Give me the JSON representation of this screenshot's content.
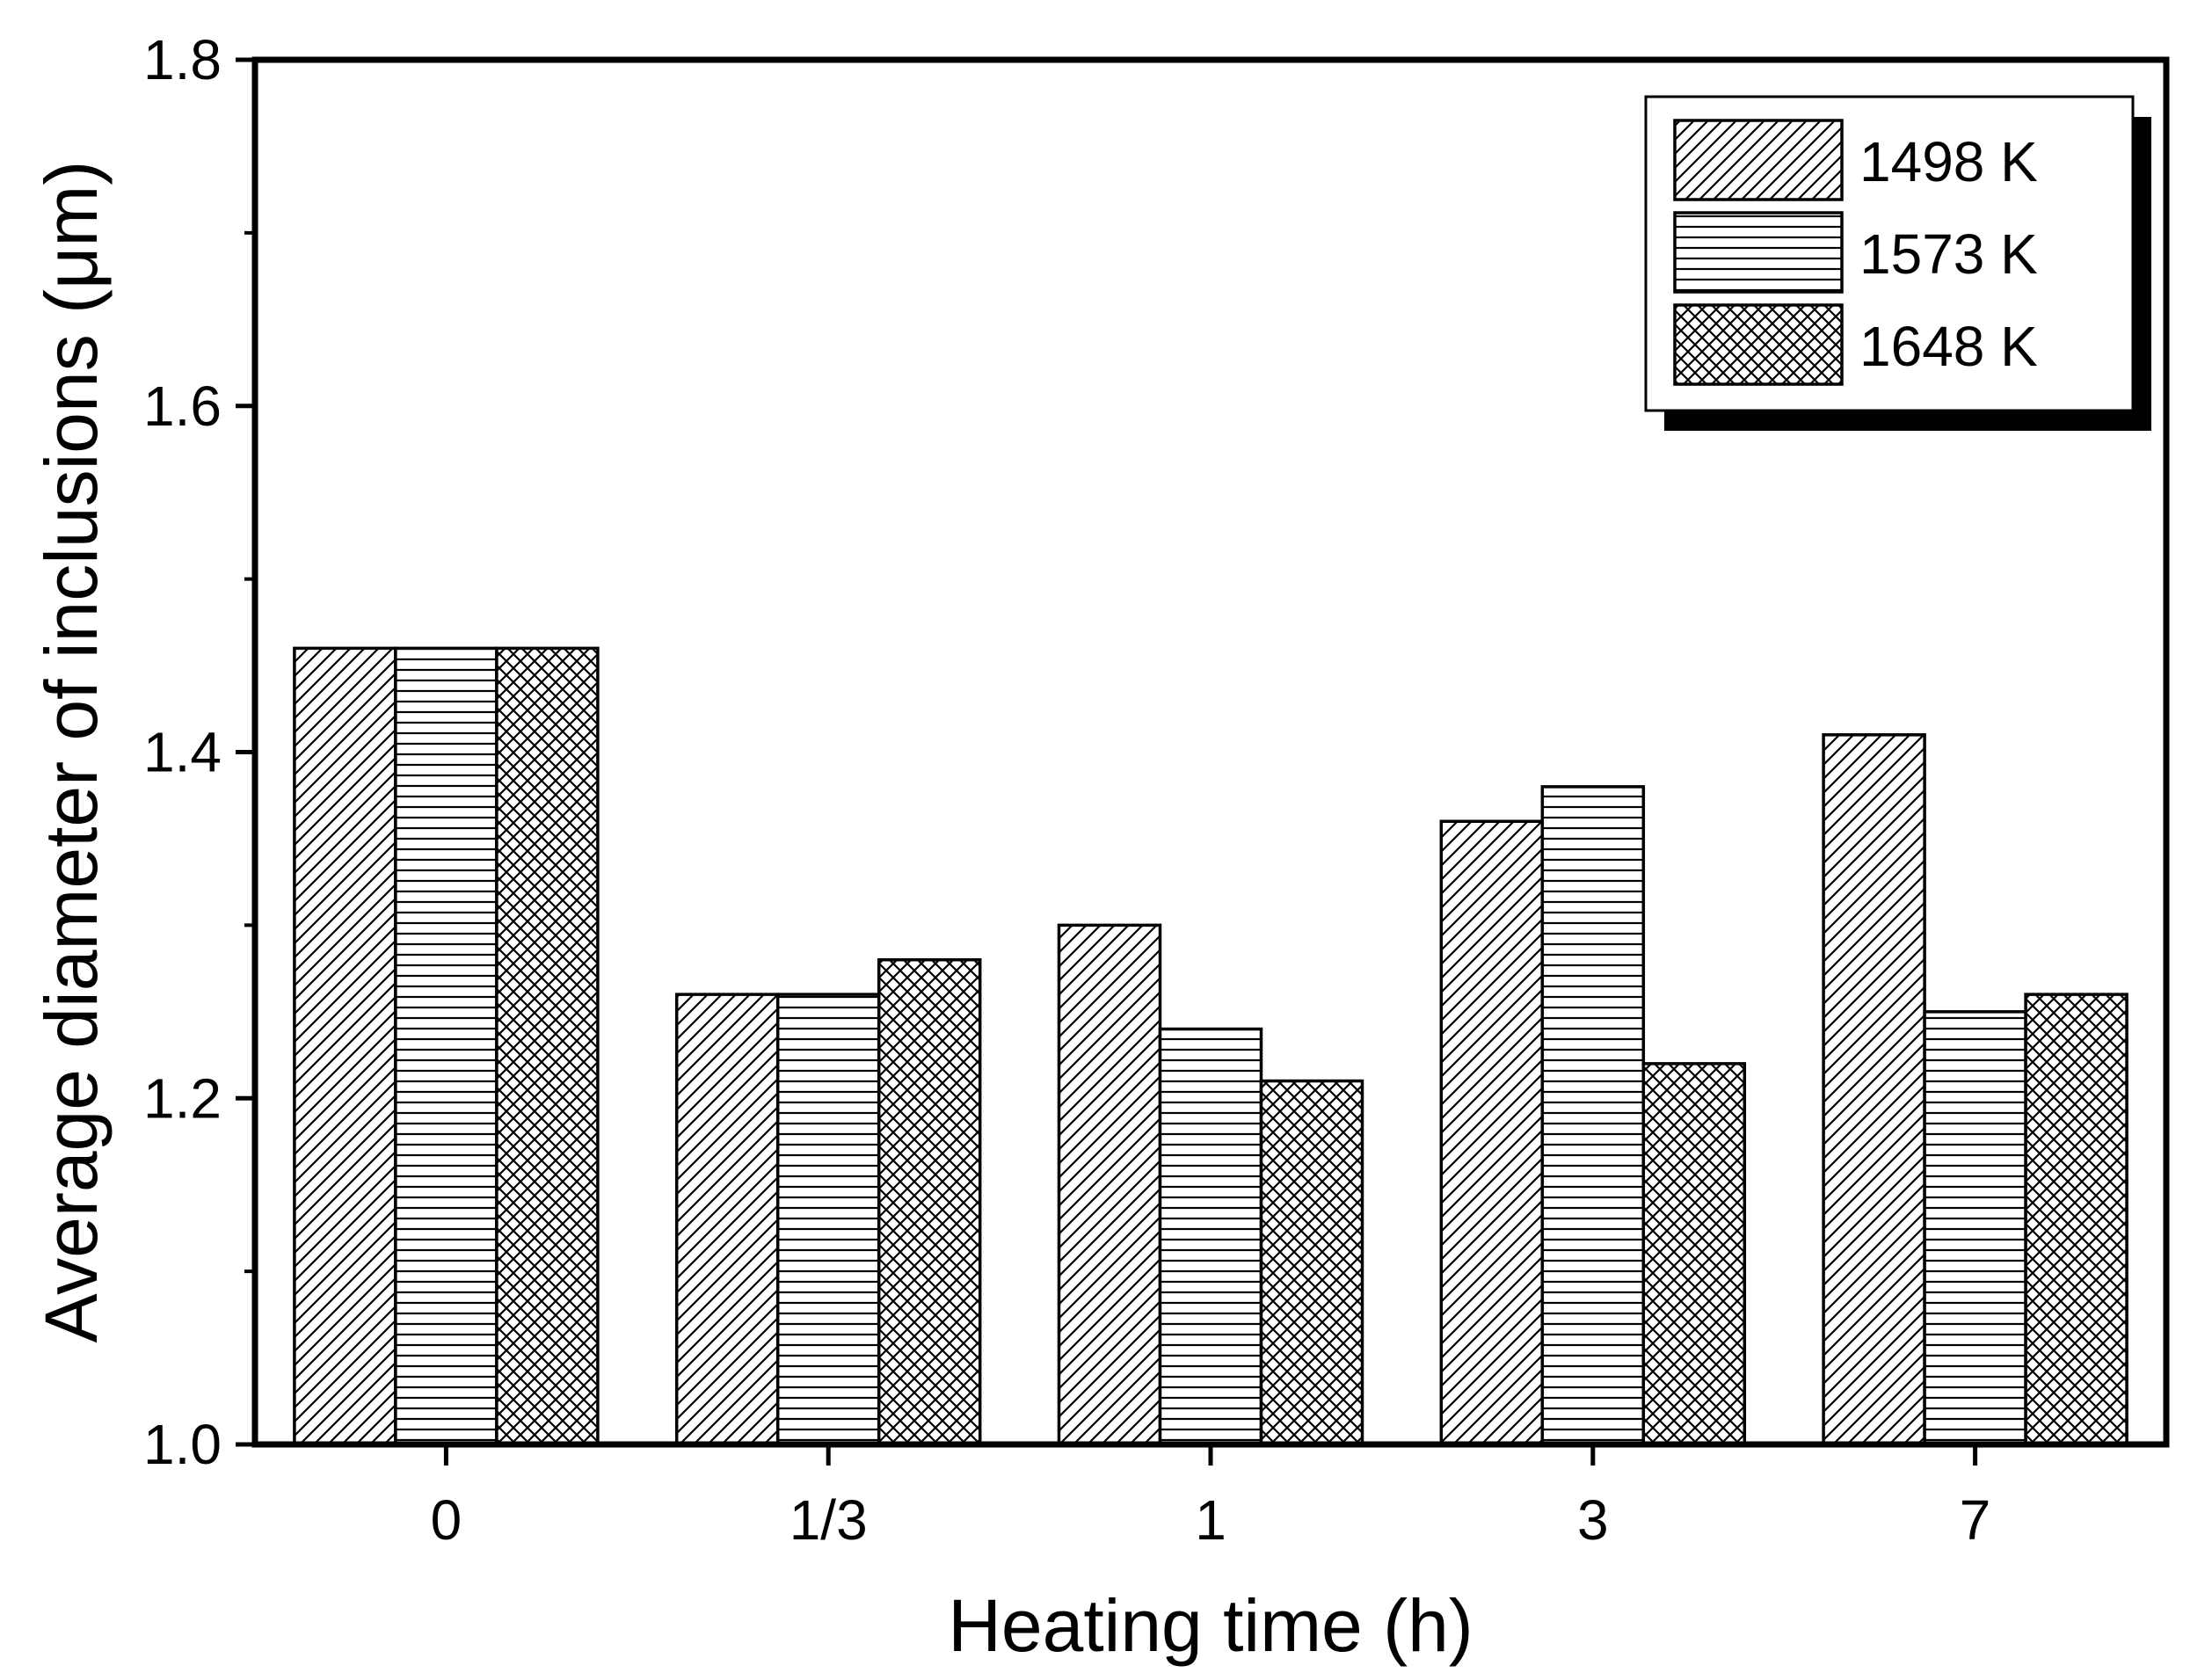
{
  "chart_data": {
    "type": "bar",
    "title": "",
    "xlabel": "Heating time (h)",
    "ylabel": "Average diameter of inclusions (μm)",
    "categories": [
      "0",
      "1/3",
      "1",
      "3",
      "7"
    ],
    "ylim": [
      1.0,
      1.8
    ],
    "yticks": [
      1.0,
      1.2,
      1.4,
      1.6,
      1.8
    ],
    "ytick_labels": [
      "1.0",
      "1.2",
      "1.4",
      "1.6",
      "1.8"
    ],
    "grid": false,
    "legend_position": "top-right",
    "series": [
      {
        "name": "1498 K",
        "pattern": "diagonal-hatch",
        "values": [
          1.46,
          1.26,
          1.3,
          1.36,
          1.41
        ]
      },
      {
        "name": "1573 K",
        "pattern": "horizontal-lines",
        "values": [
          1.46,
          1.26,
          1.24,
          1.38,
          1.25
        ]
      },
      {
        "name": "1648 K",
        "pattern": "cross-hatch",
        "values": [
          1.46,
          1.28,
          1.21,
          1.22,
          1.26
        ]
      }
    ]
  }
}
